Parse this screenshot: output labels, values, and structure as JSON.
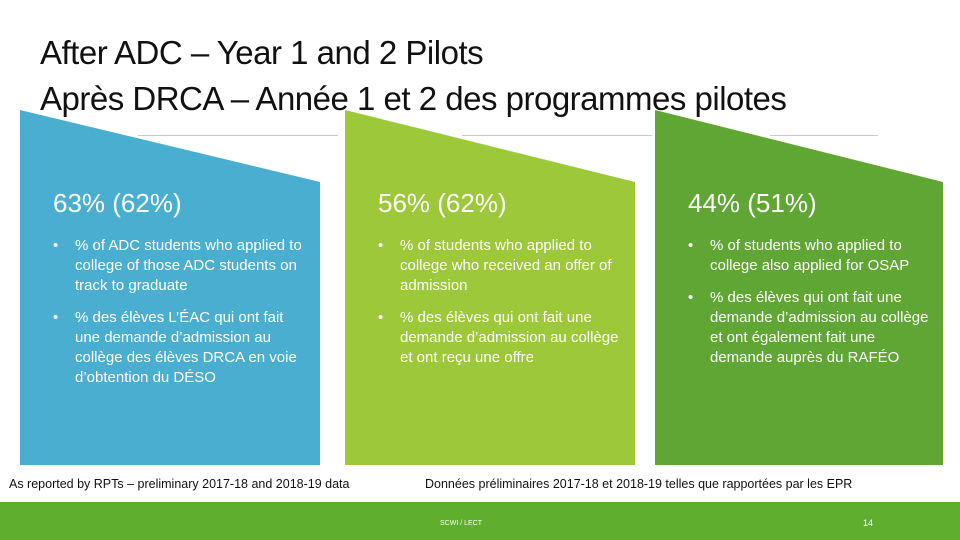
{
  "slide": {
    "title_line1": "After ADC – Year 1 and 2 Pilots",
    "title_line2": "Après DRCA – Année 1 et 2 des programmes pilotes"
  },
  "panels": [
    {
      "color": "#4aaed0",
      "stat": "63% (62%)",
      "bullets": [
        "% of ADC students who applied to college of those ADC students on track to graduate",
        "% des élèves L’ÉAC qui ont fait une demande d’admission au collège des élèves DRCA en voie d’obtention du DÉSO"
      ]
    },
    {
      "color": "#9cc83a",
      "stat": "56% (62%)",
      "bullets": [
        "% of students who applied to college who received an offer of admission",
        "% des élèves qui ont fait une demande d’admission au collège et ont reçu une offre"
      ]
    },
    {
      "color": "#5fa634",
      "stat": "44% (51%)",
      "bullets": [
        "% of students who applied to college also applied for OSAP",
        "% des élèves qui ont fait une demande d’admission au collège et ont également fait une demande auprès du RAFÉO"
      ]
    }
  ],
  "footnotes": {
    "english": "As reported by RPTs – preliminary 2017-18 and 2018-19 data",
    "french": "Données préliminaires 2017-18 et 2018-19 telles que rapportées par les EPR"
  },
  "footer": {
    "label": "SCWI / LECT",
    "page_number": "14",
    "bar_color": "#5fae2e"
  }
}
